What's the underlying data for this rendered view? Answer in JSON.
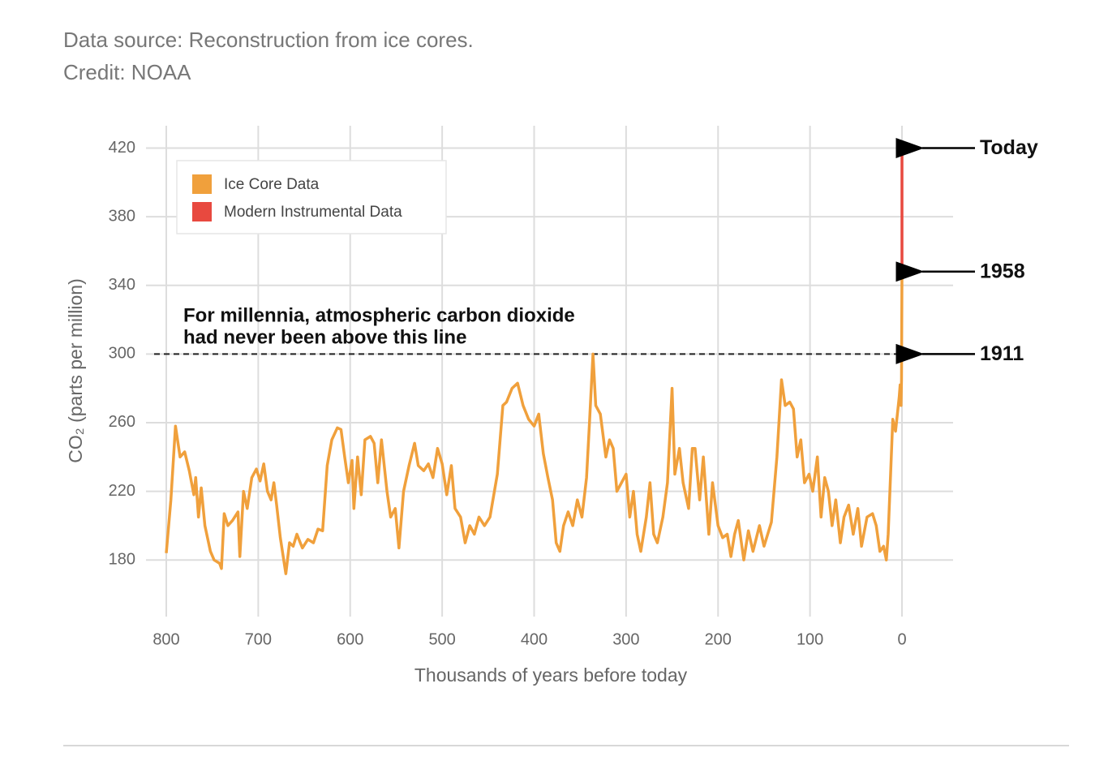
{
  "source": "Data source: Reconstruction from ice cores.",
  "credit": "Credit: NOAA",
  "chart_data": {
    "type": "line",
    "x_label": "Thousands of years before today",
    "y_label": "CO₂ (parts per million)",
    "xlim": [
      800,
      0
    ],
    "xticks": [
      800,
      700,
      600,
      500,
      400,
      300,
      200,
      100,
      0
    ],
    "ylim": [
      147,
      433
    ],
    "yticks": [
      180,
      220,
      260,
      300,
      340,
      380,
      420
    ],
    "grid": true,
    "legend": "upper left",
    "reference_line": {
      "y": 300,
      "text": [
        "For millennia, atmospheric carbon dioxide",
        "had never been above this line"
      ]
    },
    "annotations": [
      {
        "text": "Today",
        "y": 420
      },
      {
        "text": "1958",
        "y": 348
      },
      {
        "text": "1911",
        "y": 300
      }
    ],
    "series": [
      {
        "name": "Ice Core Data",
        "color": "#f0a03c",
        "x": [
          800,
          795,
          790,
          785,
          780,
          775,
          770,
          768,
          765,
          762,
          758,
          752,
          748,
          742,
          740,
          737,
          733,
          728,
          722,
          720,
          716,
          712,
          707,
          702,
          698,
          694,
          690,
          686,
          683,
          680,
          676,
          670,
          666,
          662,
          658,
          652,
          646,
          640,
          635,
          630,
          625,
          620,
          614,
          610,
          606,
          602,
          598,
          596,
          592,
          588,
          584,
          578,
          574,
          570,
          566,
          560,
          556,
          551,
          547,
          542,
          536,
          530,
          526,
          520,
          515,
          510,
          505,
          500,
          495,
          490,
          486,
          480,
          475,
          470,
          465,
          460,
          454,
          448,
          440,
          434,
          430,
          424,
          418,
          412,
          406,
          400,
          395,
          390,
          385,
          380,
          376,
          372,
          368,
          363,
          358,
          353,
          348,
          343,
          340,
          336,
          333,
          328,
          322,
          318,
          314,
          310,
          305,
          300,
          296,
          292,
          288,
          284,
          278,
          274,
          270,
          266,
          260,
          255,
          250,
          247,
          242,
          238,
          232,
          228,
          225,
          220,
          216,
          210,
          206,
          200,
          195,
          190,
          186,
          182,
          178,
          172,
          167,
          162,
          155,
          150,
          142,
          136,
          131,
          127,
          122,
          118,
          114,
          110,
          106,
          101,
          97,
          92,
          88,
          84,
          80,
          76,
          72,
          67,
          63,
          58,
          53,
          48,
          44,
          38,
          32,
          28,
          24,
          20,
          17,
          15,
          12,
          10,
          7,
          5,
          3,
          2,
          1,
          0.5,
          0
        ],
        "values": [
          184,
          215,
          258,
          240,
          243,
          232,
          218,
          228,
          205,
          222,
          200,
          185,
          180,
          178,
          175,
          207,
          200,
          203,
          208,
          182,
          220,
          210,
          228,
          233,
          226,
          236,
          220,
          215,
          225,
          212,
          193,
          172,
          190,
          188,
          195,
          187,
          192,
          190,
          198,
          197,
          235,
          250,
          257,
          256,
          240,
          225,
          238,
          210,
          240,
          218,
          250,
          252,
          248,
          225,
          250,
          220,
          205,
          210,
          187,
          220,
          235,
          248,
          235,
          232,
          236,
          228,
          245,
          236,
          218,
          235,
          210,
          205,
          190,
          200,
          195,
          205,
          200,
          205,
          230,
          270,
          272,
          280,
          283,
          270,
          262,
          258,
          265,
          242,
          228,
          215,
          190,
          185,
          200,
          208,
          200,
          215,
          205,
          228,
          258,
          300,
          270,
          265,
          240,
          250,
          245,
          220,
          225,
          230,
          205,
          220,
          195,
          185,
          205,
          225,
          195,
          190,
          205,
          225,
          280,
          230,
          245,
          225,
          210,
          245,
          245,
          215,
          240,
          195,
          225,
          200,
          193,
          195,
          182,
          195,
          203,
          180,
          197,
          185,
          200,
          188,
          202,
          240,
          285,
          270,
          272,
          268,
          240,
          250,
          225,
          230,
          220,
          240,
          205,
          228,
          220,
          200,
          215,
          190,
          205,
          212,
          195,
          210,
          188,
          205,
          207,
          200,
          185,
          188,
          180,
          195,
          235,
          262,
          255,
          265,
          275,
          282,
          270,
          285,
          348
        ]
      },
      {
        "name": "Modern Instrumental Data",
        "color": "#e8493f",
        "x": [
          0,
          0
        ],
        "values": [
          348,
          420
        ]
      }
    ]
  }
}
